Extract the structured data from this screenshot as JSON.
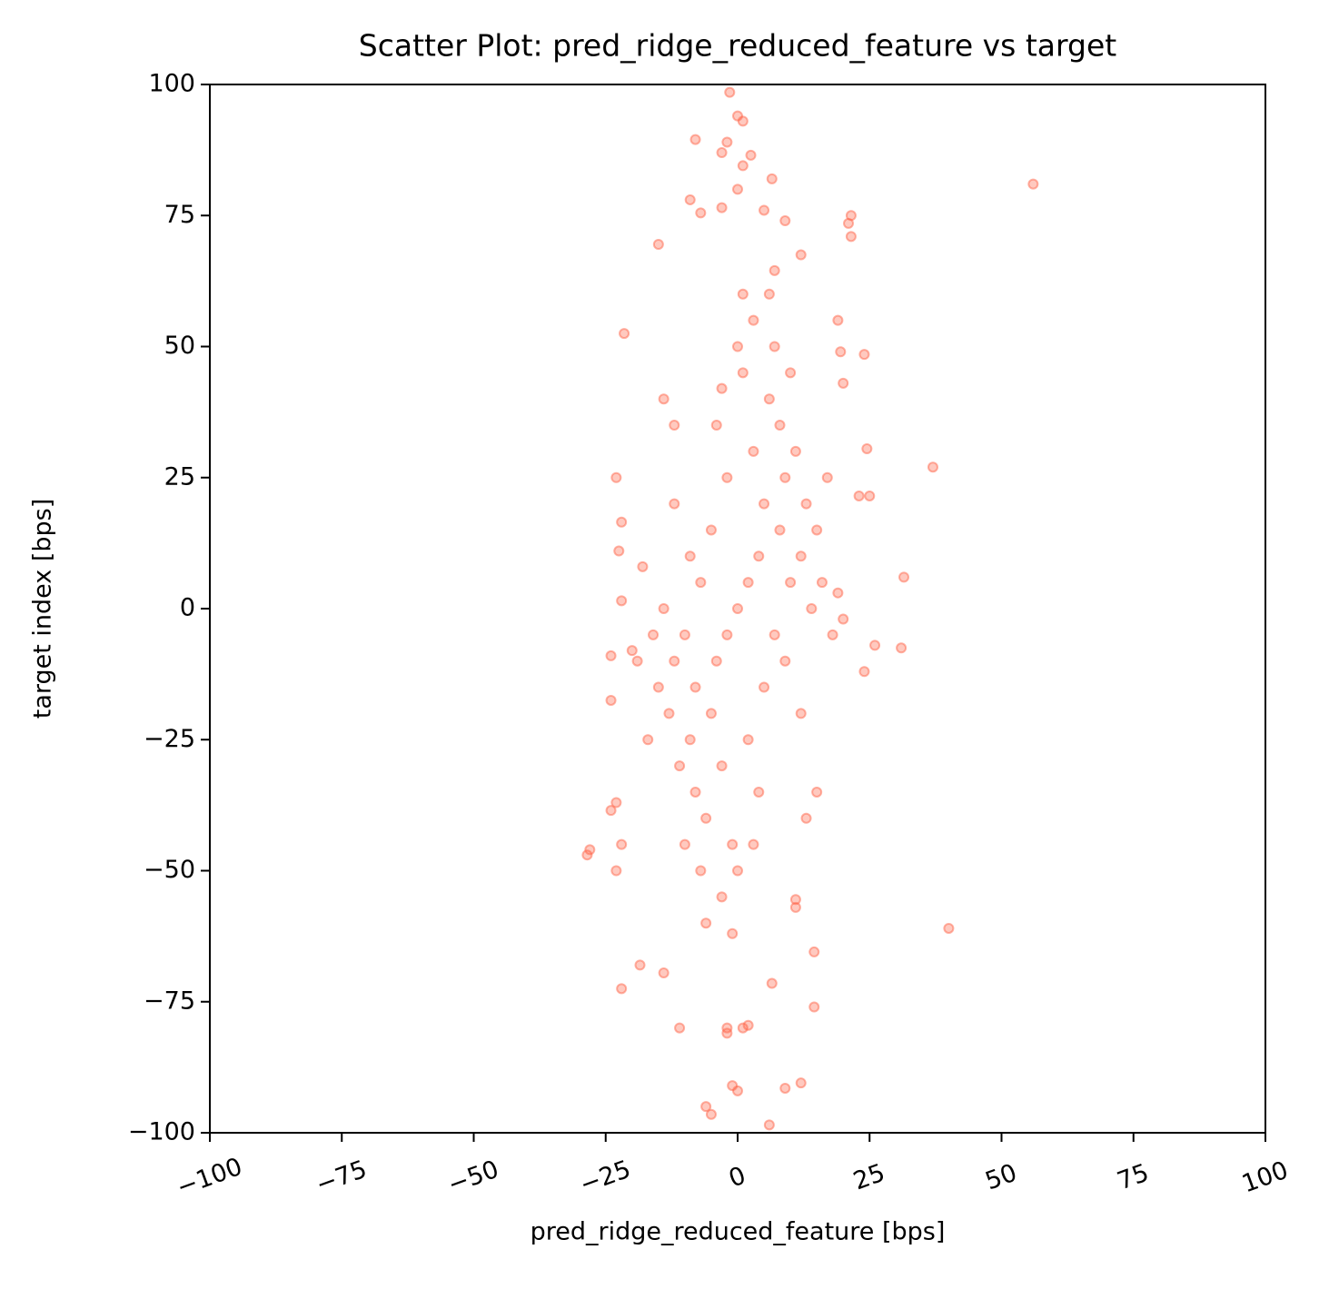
{
  "chart_data": {
    "type": "scatter",
    "title": "Scatter Plot: pred_ridge_reduced_feature vs target",
    "xlabel": "pred_ridge_reduced_feature [bps]",
    "ylabel": "target index [bps]",
    "color": "#ff6347",
    "xlim": [
      -100,
      100
    ],
    "ylim": [
      -100,
      100
    ],
    "xticks": [
      {
        "value": -100,
        "label": "−100"
      },
      {
        "value": -75,
        "label": "−75"
      },
      {
        "value": -50,
        "label": "−50"
      },
      {
        "value": -25,
        "label": "−25"
      },
      0,
      25,
      50,
      75,
      100
    ],
    "yticks": [
      {
        "value": -100,
        "label": "−100"
      },
      {
        "value": -75,
        "label": "−75"
      },
      {
        "value": -50,
        "label": "−50"
      },
      {
        "value": -25,
        "label": "−25"
      },
      0,
      25,
      50,
      75,
      100
    ],
    "x": [
      56,
      37,
      40,
      31.5,
      31,
      26,
      24,
      24.5,
      25,
      23,
      21.5,
      21,
      21.5,
      24,
      20,
      19.5,
      19,
      -21.5,
      -23,
      -22,
      -22.5,
      -22,
      -24,
      -24,
      -28.5,
      -28,
      -24,
      -23,
      -22,
      -23,
      -22,
      -18.5,
      -14,
      -11,
      -6,
      -5,
      -2,
      -2,
      1,
      2,
      -1,
      0,
      6,
      9,
      12,
      14.5,
      14.5,
      11,
      11,
      6.5,
      -1.5,
      0,
      1,
      -2,
      -3,
      -8,
      2.5,
      1,
      6.5,
      0,
      -9,
      -3,
      -7,
      5,
      9,
      12,
      -15,
      7,
      0,
      2,
      -2,
      4,
      -4,
      5,
      -5,
      3,
      -3,
      6,
      -6,
      1,
      -1,
      8,
      -8,
      9,
      -9,
      10,
      -10,
      7,
      -7,
      12,
      -12,
      11,
      -11,
      0,
      0,
      3,
      -3,
      5,
      -5,
      2,
      -2,
      8,
      -8,
      13,
      -13,
      4,
      -4,
      6,
      -6,
      14,
      -14,
      15,
      -15,
      10,
      -10,
      16,
      -16,
      1,
      -1,
      7,
      -7,
      9,
      -9,
      12,
      -12,
      3,
      -3,
      17,
      -17,
      18,
      -18,
      19,
      20,
      -19,
      -20,
      15,
      -14,
      13,
      -12
    ],
    "values": [
      81,
      27,
      -61,
      6,
      -7.5,
      -7,
      -12,
      30.5,
      21.5,
      21.5,
      75,
      73.5,
      71,
      48.5,
      43,
      49,
      55,
      52.5,
      25,
      16.5,
      11,
      1.5,
      -9,
      -17.5,
      -47,
      -46,
      -38.5,
      -37,
      -45,
      -50,
      -72.5,
      -68,
      -69.5,
      -80,
      -95,
      -96.5,
      -80,
      -81,
      -80,
      -79.5,
      -91,
      -92,
      -98.5,
      -91.5,
      -90.5,
      -76,
      -65.5,
      -55.5,
      -57,
      -71.5,
      98.5,
      94,
      93,
      89,
      87,
      89.5,
      86.5,
      84.5,
      82,
      80,
      78,
      76.5,
      75.5,
      76,
      74,
      67.5,
      69.5,
      64.5,
      0,
      5,
      -5,
      10,
      -10,
      20,
      -20,
      30,
      -30,
      40,
      -40,
      45,
      -45,
      15,
      -15,
      25,
      -25,
      5,
      -5,
      -5,
      5,
      10,
      -10,
      30,
      -30,
      50,
      -50,
      55,
      -55,
      -15,
      15,
      -25,
      25,
      35,
      -35,
      20,
      -20,
      -35,
      35,
      60,
      -60,
      0,
      0,
      15,
      -15,
      45,
      -45,
      5,
      -5,
      60,
      -62,
      50,
      -50,
      -10,
      10,
      -20,
      20,
      -45,
      42,
      25,
      -25,
      -5,
      8,
      3,
      -2,
      -10,
      -8,
      -35,
      40,
      -40,
      35
    ]
  }
}
